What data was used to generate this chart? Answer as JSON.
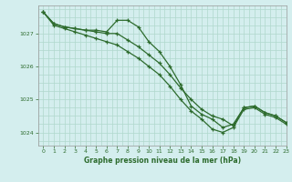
{
  "title": "Graphe pression niveau de la mer (hPa)",
  "background_color": "#d4eeee",
  "grid_color": "#b0d8cc",
  "line_color": "#2d6b2d",
  "xlim": [
    -0.5,
    23
  ],
  "ylim": [
    1023.6,
    1027.85
  ],
  "yticks": [
    1024,
    1025,
    1026,
    1027
  ],
  "xticks": [
    0,
    1,
    2,
    3,
    4,
    5,
    6,
    7,
    8,
    9,
    10,
    11,
    12,
    13,
    14,
    15,
    16,
    17,
    18,
    19,
    20,
    21,
    22,
    23
  ],
  "series": [
    [
      1027.65,
      1027.3,
      1027.2,
      1027.15,
      1027.1,
      1027.1,
      1027.05,
      1027.4,
      1027.4,
      1027.2,
      1026.75,
      1026.45,
      1026.0,
      1025.45,
      1024.8,
      1024.55,
      1024.4,
      1024.15,
      1024.25,
      1024.75,
      1024.8,
      1024.6,
      1024.5,
      1024.3
    ],
    [
      1027.65,
      1027.3,
      1027.2,
      1027.15,
      1027.1,
      1027.05,
      1027.0,
      1027.0,
      1026.8,
      1026.6,
      1026.35,
      1026.1,
      1025.75,
      1025.35,
      1025.0,
      1024.7,
      1024.5,
      1024.4,
      1024.2,
      1024.75,
      1024.8,
      1024.6,
      1024.5,
      1024.3
    ],
    [
      1027.65,
      1027.25,
      1027.15,
      1027.05,
      1026.95,
      1026.85,
      1026.75,
      1026.65,
      1026.45,
      1026.25,
      1026.0,
      1025.75,
      1025.4,
      1025.0,
      1024.65,
      1024.4,
      1024.1,
      1024.0,
      1024.15,
      1024.7,
      1024.75,
      1024.55,
      1024.45,
      1024.25
    ]
  ]
}
